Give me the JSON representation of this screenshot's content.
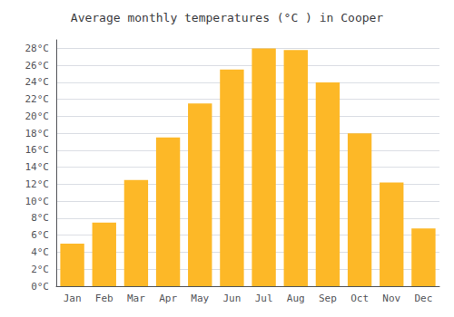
{
  "chart_data": {
    "type": "bar",
    "title": "Average monthly temperatures (°C ) in Cooper",
    "categories": [
      "Jan",
      "Feb",
      "Mar",
      "Apr",
      "May",
      "Jun",
      "Jul",
      "Aug",
      "Sep",
      "Oct",
      "Nov",
      "Dec"
    ],
    "values": [
      5.0,
      7.5,
      12.5,
      17.5,
      21.5,
      25.5,
      28.0,
      27.8,
      24.0,
      18.0,
      12.2,
      6.8
    ],
    "color": "#FDB827",
    "ylim": [
      0,
      29
    ],
    "yticks": [
      {
        "value": 0,
        "label": "0°C"
      },
      {
        "value": 2,
        "label": "2°C"
      },
      {
        "value": 4,
        "label": "4°C"
      },
      {
        "value": 6,
        "label": "6°C"
      },
      {
        "value": 8,
        "label": "8°C"
      },
      {
        "value": 10,
        "label": "10°C"
      },
      {
        "value": 12,
        "label": "12°C"
      },
      {
        "value": 14,
        "label": "14°C"
      },
      {
        "value": 16,
        "label": "16°C"
      },
      {
        "value": 18,
        "label": "18°C"
      },
      {
        "value": 20,
        "label": "20°C"
      },
      {
        "value": 22,
        "label": "22°C"
      },
      {
        "value": 24,
        "label": "24°C"
      },
      {
        "value": 26,
        "label": "26°C"
      },
      {
        "value": 28,
        "label": "28°C"
      }
    ],
    "grid": true
  }
}
